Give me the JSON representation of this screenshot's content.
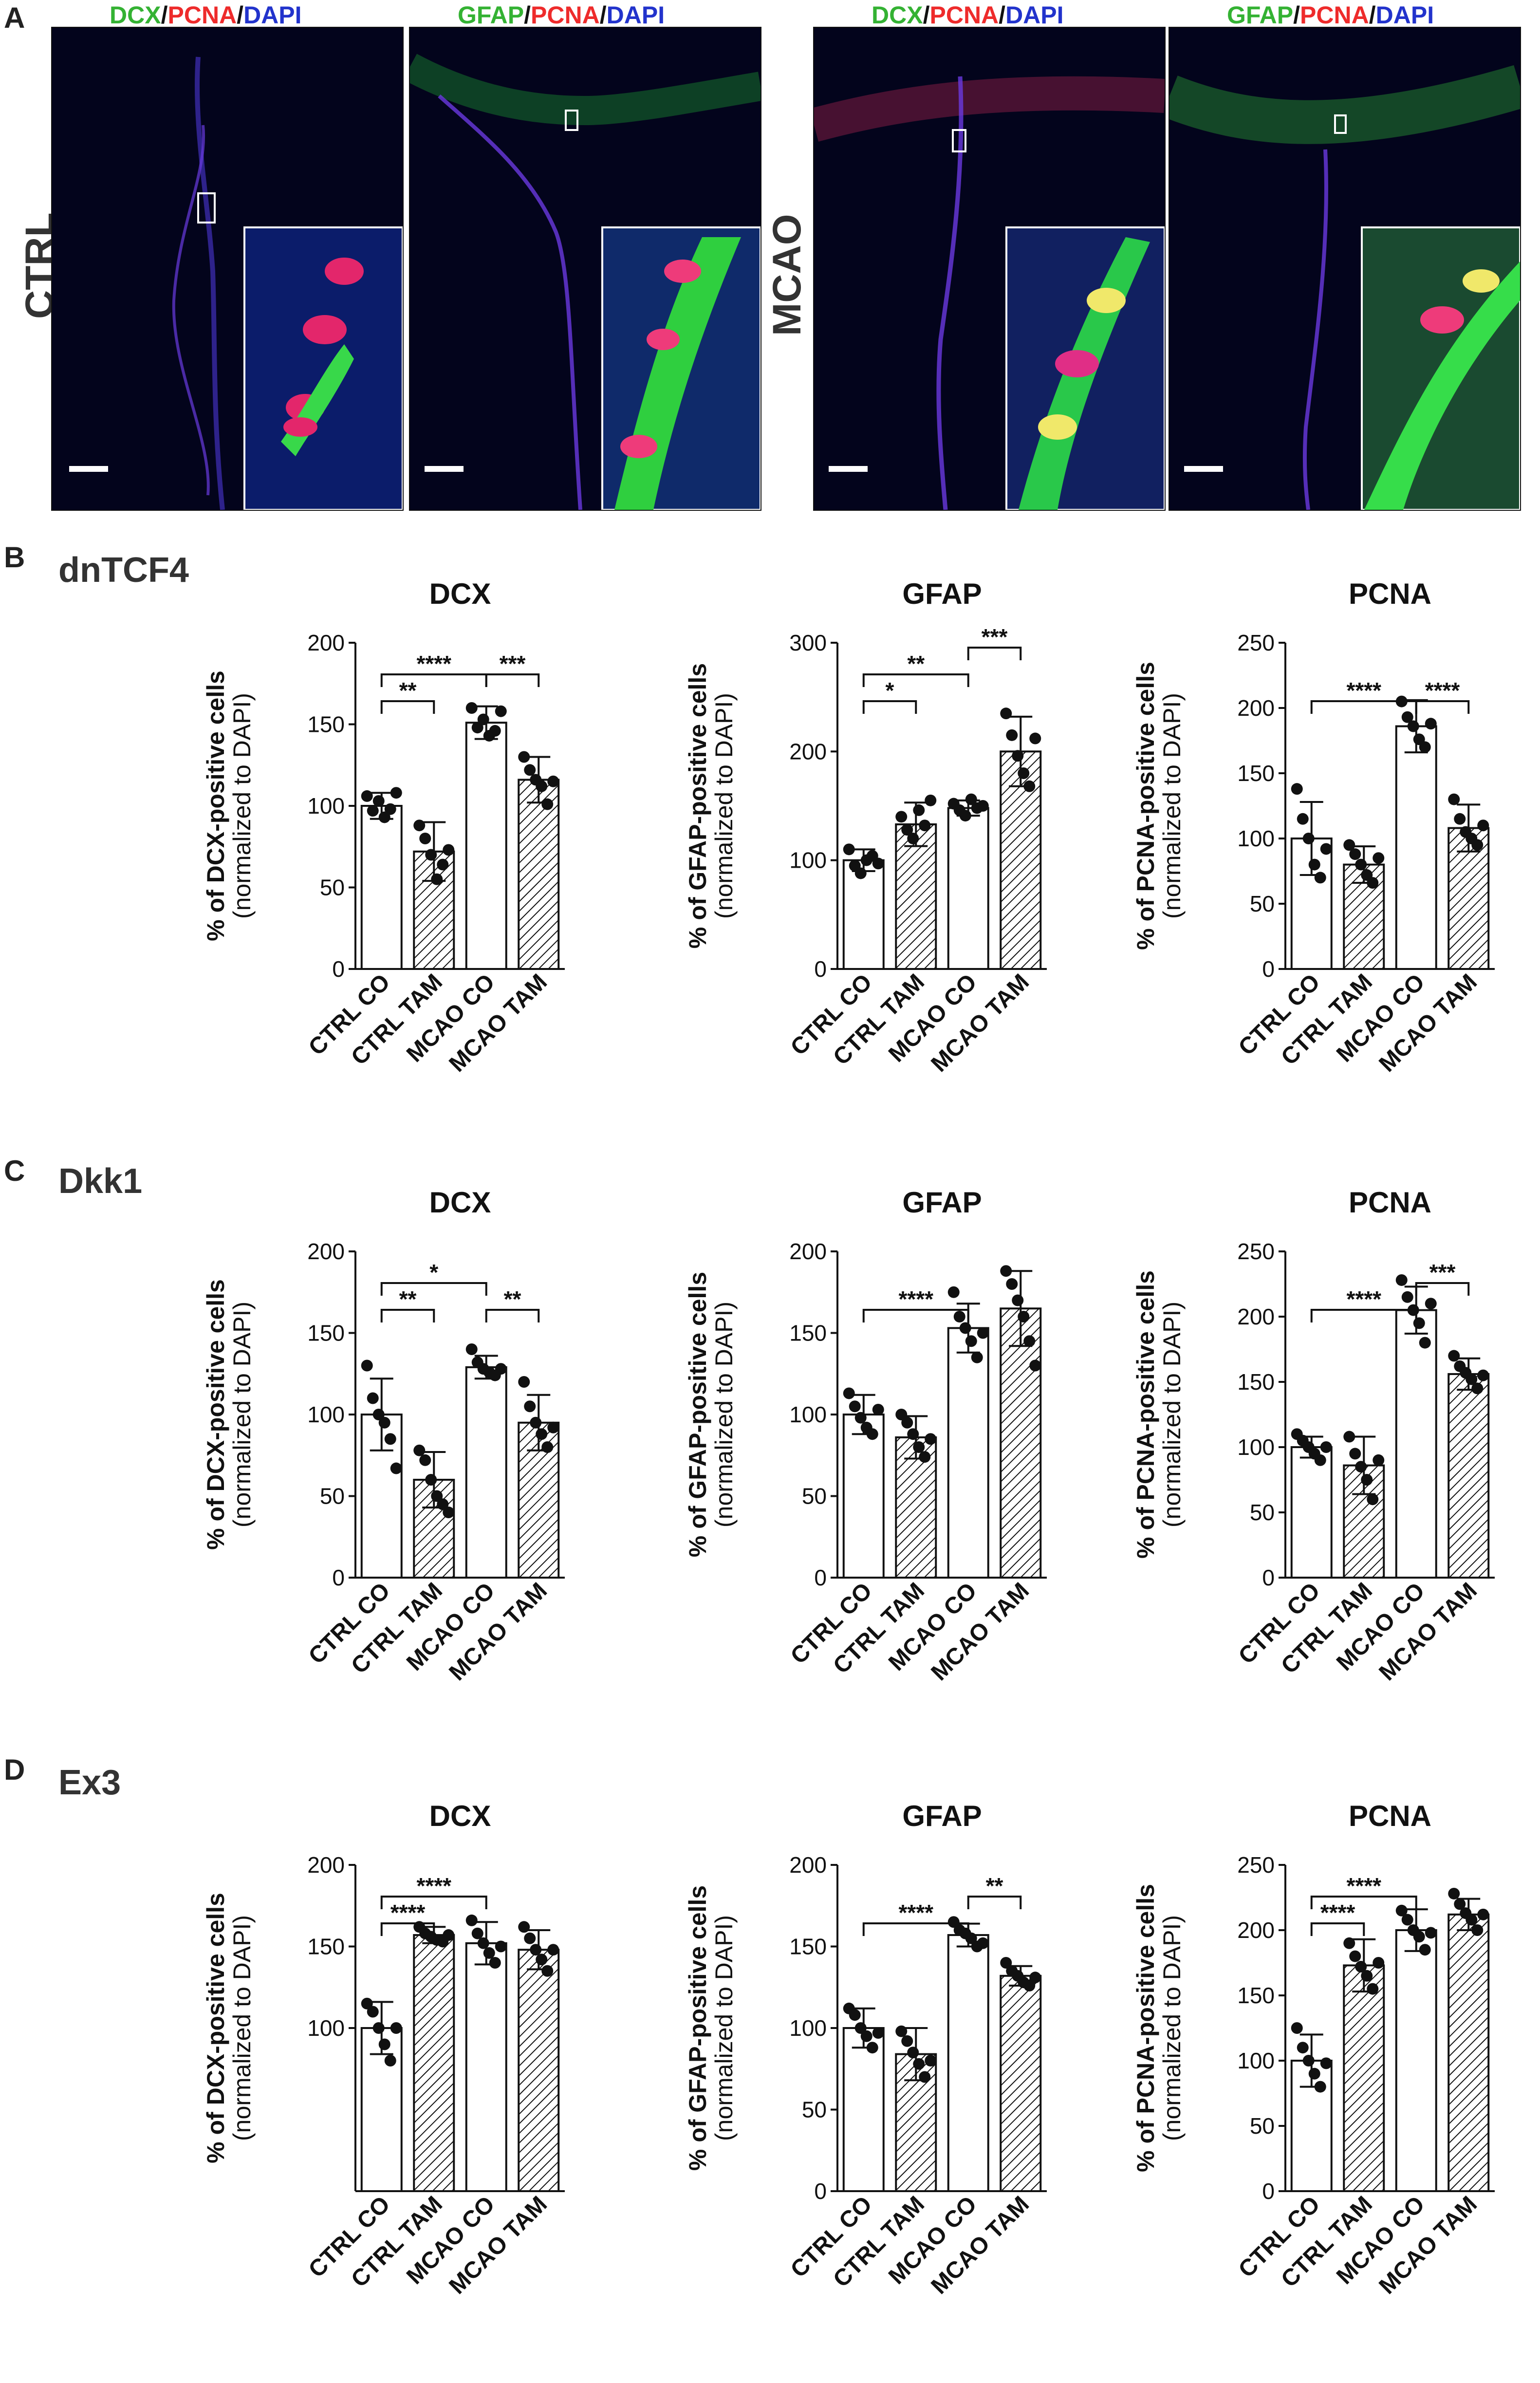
{
  "panel_a": {
    "letter": "A",
    "colors": {
      "green": "#34b233",
      "red": "#ee2b2b",
      "blue": "#2233cc",
      "slash": "#111111"
    },
    "images": [
      {
        "stain": [
          {
            "t": "DCX",
            "c": "green"
          },
          {
            "t": "/",
            "c": "slash"
          },
          {
            "t": "PCNA",
            "c": "red"
          },
          {
            "t": "/",
            "c": "slash"
          },
          {
            "t": "DAPI",
            "c": "blue"
          }
        ]
      },
      {
        "stain": [
          {
            "t": "GFAP",
            "c": "green"
          },
          {
            "t": "/",
            "c": "slash"
          },
          {
            "t": "PCNA",
            "c": "red"
          },
          {
            "t": "/",
            "c": "slash"
          },
          {
            "t": "DAPI",
            "c": "blue"
          }
        ]
      },
      {
        "stain": [
          {
            "t": "DCX",
            "c": "green"
          },
          {
            "t": "/",
            "c": "slash"
          },
          {
            "t": "PCNA",
            "c": "red"
          },
          {
            "t": "/",
            "c": "slash"
          },
          {
            "t": "DAPI",
            "c": "blue"
          }
        ]
      },
      {
        "stain": [
          {
            "t": "GFAP",
            "c": "green"
          },
          {
            "t": "/",
            "c": "slash"
          },
          {
            "t": "PCNA",
            "c": "red"
          },
          {
            "t": "/",
            "c": "slash"
          },
          {
            "t": "DAPI",
            "c": "blue"
          }
        ]
      }
    ],
    "conditions": [
      "CTRL",
      "MCAO"
    ]
  },
  "panels": [
    {
      "letter": "B",
      "group": "dnTCF4"
    },
    {
      "letter": "C",
      "group": "Dkk1"
    },
    {
      "letter": "D",
      "group": "Ex3"
    }
  ],
  "chart_data": [
    {
      "type": "bar",
      "group": "dnTCF4",
      "title": "DCX",
      "ylabel": [
        "% of DCX-positive cells",
        "(normalized to DAPI)"
      ],
      "categories": [
        "CTRL CO",
        "CTRL TAM",
        "MCAO CO",
        "MCAO TAM"
      ],
      "ylim": [
        0,
        200
      ],
      "yticks": [
        0,
        50,
        100,
        150,
        200
      ],
      "values": [
        100,
        72,
        151,
        116
      ],
      "errors": [
        8,
        18,
        10,
        14
      ],
      "points": [
        [
          106,
          97,
          103,
          93,
          98,
          108
        ],
        [
          88,
          80,
          70,
          55,
          64,
          73
        ],
        [
          160,
          148,
          153,
          143,
          146,
          158
        ],
        [
          130,
          122,
          116,
          112,
          101,
          115
        ]
      ],
      "significance": [
        {
          "from": 0,
          "to": 1,
          "label": "**",
          "level": 1
        },
        {
          "from": 0,
          "to": 2,
          "label": "****",
          "level": 2
        },
        {
          "from": 2,
          "to": 3,
          "label": "***",
          "level": 2
        }
      ]
    },
    {
      "type": "bar",
      "group": "dnTCF4",
      "title": "GFAP",
      "ylabel": [
        "% of GFAP-positive cells",
        "(normalized to DAPI)"
      ],
      "categories": [
        "CTRL CO",
        "CTRL TAM",
        "MCAO CO",
        "MCAO TAM"
      ],
      "ylim": [
        0,
        300
      ],
      "yticks": [
        0,
        100,
        200,
        300
      ],
      "values": [
        100,
        133,
        148,
        200
      ],
      "errors": [
        10,
        20,
        7,
        32
      ],
      "points": [
        [
          110,
          95,
          88,
          100,
          104,
          97
        ],
        [
          140,
          128,
          120,
          146,
          132,
          155
        ],
        [
          152,
          146,
          141,
          156,
          148,
          150
        ],
        [
          235,
          215,
          196,
          180,
          168,
          212
        ]
      ],
      "significance": [
        {
          "from": 0,
          "to": 1,
          "label": "*",
          "level": 1
        },
        {
          "from": 0,
          "to": 2,
          "label": "**",
          "level": 2
        },
        {
          "from": 2,
          "to": 3,
          "label": "***",
          "level": 3
        }
      ]
    },
    {
      "type": "bar",
      "group": "dnTCF4",
      "title": "PCNA",
      "ylabel": [
        "% of PCNA-positive cells",
        "(normalized to DAPI)"
      ],
      "categories": [
        "CTRL CO",
        "CTRL TAM",
        "MCAO CO",
        "MCAO TAM"
      ],
      "ylim": [
        0,
        250
      ],
      "yticks": [
        0,
        50,
        100,
        150,
        200,
        250
      ],
      "values": [
        100,
        80,
        186,
        108
      ],
      "errors": [
        28,
        14,
        20,
        18
      ],
      "points": [
        [
          138,
          115,
          100,
          80,
          70,
          92
        ],
        [
          95,
          88,
          80,
          72,
          66,
          85
        ],
        [
          205,
          193,
          186,
          176,
          170,
          188
        ],
        [
          130,
          115,
          105,
          100,
          95,
          110
        ]
      ],
      "significance": [
        {
          "from": 0,
          "to": 2,
          "label": "****",
          "level": 1
        },
        {
          "from": 2,
          "to": 3,
          "label": "****",
          "level": 1
        }
      ]
    },
    {
      "type": "bar",
      "group": "Dkk1",
      "title": "DCX",
      "ylabel": [
        "% of DCX-positive cells",
        "(normalized to DAPI)"
      ],
      "categories": [
        "CTRL CO",
        "CTRL TAM",
        "MCAO CO",
        "MCAO TAM"
      ],
      "ylim": [
        0,
        200
      ],
      "yticks": [
        0,
        50,
        100,
        150,
        200
      ],
      "values": [
        100,
        60,
        129,
        95
      ],
      "errors": [
        22,
        17,
        7,
        17
      ],
      "points": [
        [
          130,
          110,
          100,
          95,
          85,
          67
        ],
        [
          78,
          72,
          60,
          50,
          45,
          40
        ],
        [
          140,
          132,
          128,
          126,
          124,
          128
        ],
        [
          120,
          105,
          95,
          88,
          80,
          92
        ]
      ],
      "significance": [
        {
          "from": 0,
          "to": 1,
          "label": "**",
          "level": 1
        },
        {
          "from": 0,
          "to": 2,
          "label": "*",
          "level": 2
        },
        {
          "from": 2,
          "to": 3,
          "label": "**",
          "level": 1
        }
      ]
    },
    {
      "type": "bar",
      "group": "Dkk1",
      "title": "GFAP",
      "ylabel": [
        "% of GFAP-positive cells",
        "(normalized to DAPI)"
      ],
      "categories": [
        "CTRL CO",
        "CTRL TAM",
        "MCAO CO",
        "MCAO TAM"
      ],
      "ylim": [
        0,
        200
      ],
      "yticks": [
        0,
        50,
        100,
        150,
        200
      ],
      "values": [
        100,
        86,
        153,
        165
      ],
      "errors": [
        12,
        13,
        15,
        23
      ],
      "points": [
        [
          113,
          105,
          98,
          92,
          88,
          103
        ],
        [
          100,
          95,
          88,
          80,
          74,
          85
        ],
        [
          175,
          160,
          153,
          145,
          135,
          150
        ],
        [
          188,
          180,
          170,
          160,
          145,
          130
        ]
      ],
      "significance": [
        {
          "from": 0,
          "to": 2,
          "label": "****",
          "level": 1
        }
      ]
    },
    {
      "type": "bar",
      "group": "Dkk1",
      "title": "PCNA",
      "ylabel": [
        "% of PCNA-positive cells",
        "(normalized to DAPI)"
      ],
      "categories": [
        "CTRL CO",
        "CTRL TAM",
        "MCAO CO",
        "MCAO TAM"
      ],
      "ylim": [
        0,
        250
      ],
      "yticks": [
        0,
        50,
        100,
        150,
        200,
        250
      ],
      "values": [
        100,
        86,
        205,
        156
      ],
      "errors": [
        8,
        22,
        18,
        12
      ],
      "points": [
        [
          110,
          105,
          100,
          95,
          90,
          100
        ],
        [
          108,
          95,
          85,
          75,
          60,
          90
        ],
        [
          228,
          215,
          205,
          195,
          180,
          210
        ],
        [
          170,
          162,
          157,
          152,
          145,
          155
        ]
      ],
      "significance": [
        {
          "from": 0,
          "to": 2,
          "label": "****",
          "level": 1
        },
        {
          "from": 2,
          "to": 3,
          "label": "***",
          "level": 2
        }
      ]
    },
    {
      "type": "bar",
      "group": "Ex3",
      "title": "DCX",
      "ylabel": [
        "% of DCX-positive cells",
        "(normalized to DAPI)"
      ],
      "categories": [
        "CTRL CO",
        "CTRL TAM",
        "MCAO CO",
        "MCAO TAM"
      ],
      "ylim": [
        0,
        200
      ],
      "yticks": [
        100,
        150,
        200
      ],
      "values": [
        100,
        157,
        152,
        148
      ],
      "errors": [
        16,
        5,
        13,
        12
      ],
      "points": [
        [
          115,
          110,
          100,
          90,
          80,
          100
        ],
        [
          162,
          158,
          156,
          154,
          153,
          157
        ],
        [
          166,
          158,
          152,
          146,
          140,
          150
        ],
        [
          162,
          155,
          148,
          142,
          135,
          148
        ]
      ],
      "significance": [
        {
          "from": 0,
          "to": 1,
          "label": "****",
          "level": 1
        },
        {
          "from": 0,
          "to": 2,
          "label": "****",
          "level": 2
        }
      ]
    },
    {
      "type": "bar",
      "group": "Ex3",
      "title": "GFAP",
      "ylabel": [
        "% of GFAP-positive cells",
        "(normalized to DAPI)"
      ],
      "categories": [
        "CTRL CO",
        "CTRL TAM",
        "MCAO CO",
        "MCAO TAM"
      ],
      "ylim": [
        0,
        200
      ],
      "yticks": [
        0,
        50,
        100,
        150,
        200
      ],
      "values": [
        100,
        84,
        157,
        132
      ],
      "errors": [
        12,
        16,
        7,
        6
      ],
      "points": [
        [
          112,
          108,
          100,
          95,
          88,
          97
        ],
        [
          98,
          92,
          85,
          78,
          70,
          80
        ],
        [
          165,
          160,
          158,
          155,
          150,
          152
        ],
        [
          140,
          135,
          132,
          128,
          126,
          131
        ]
      ],
      "significance": [
        {
          "from": 0,
          "to": 2,
          "label": "****",
          "level": 1
        },
        {
          "from": 2,
          "to": 3,
          "label": "**",
          "level": 2
        }
      ]
    },
    {
      "type": "bar",
      "group": "Ex3",
      "title": "PCNA",
      "ylabel": [
        "% of PCNA-positive cells",
        "(normalized to DAPI)"
      ],
      "categories": [
        "CTRL CO",
        "CTRL TAM",
        "MCAO CO",
        "MCAO TAM"
      ],
      "ylim": [
        0,
        250
      ],
      "yticks": [
        0,
        50,
        100,
        150,
        200,
        250
      ],
      "values": [
        100,
        173,
        200,
        212
      ],
      "errors": [
        20,
        20,
        16,
        12
      ],
      "points": [
        [
          125,
          110,
          100,
          90,
          80,
          98
        ],
        [
          190,
          180,
          172,
          165,
          155,
          175
        ],
        [
          215,
          208,
          200,
          195,
          185,
          198
        ],
        [
          228,
          220,
          213,
          208,
          200,
          212
        ]
      ],
      "significance": [
        {
          "from": 0,
          "to": 1,
          "label": "****",
          "level": 1
        },
        {
          "from": 0,
          "to": 2,
          "label": "****",
          "level": 2
        }
      ]
    }
  ]
}
